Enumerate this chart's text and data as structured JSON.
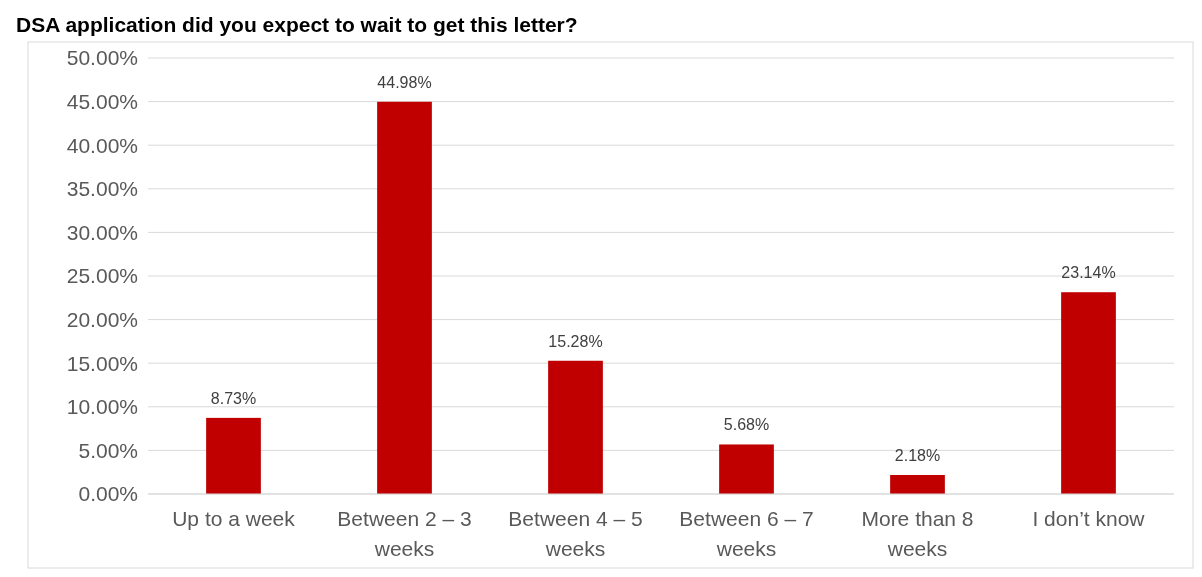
{
  "chart_data": {
    "type": "bar",
    "title": "DSA application did you expect to wait to get this letter?",
    "categories": [
      "Up to a week",
      "Between 2 – 3 weeks",
      "Between 4 – 5 weeks",
      "Between 6 – 7 weeks",
      "More than 8 weeks",
      "I don’t know"
    ],
    "values": [
      8.73,
      44.98,
      15.28,
      5.68,
      2.18,
      23.14
    ],
    "value_labels": [
      "8.73%",
      "44.98%",
      "15.28%",
      "5.68%",
      "2.18%",
      "23.14%"
    ],
    "color": "#c00000",
    "ylim": [
      0,
      50
    ],
    "yticks": [
      {
        "value": 0,
        "label": "0.00%"
      },
      {
        "value": 5,
        "label": "5.00%"
      },
      {
        "value": 10,
        "label": "10.00%"
      },
      {
        "value": 15,
        "label": "15.00%"
      },
      {
        "value": 20,
        "label": "20.00%"
      },
      {
        "value": 25,
        "label": "25.00%"
      },
      {
        "value": 30,
        "label": "30.00%"
      },
      {
        "value": 35,
        "label": "35.00%"
      },
      {
        "value": 40,
        "label": "40.00%"
      },
      {
        "value": 45,
        "label": "45.00%"
      },
      {
        "value": 50,
        "label": "50.00%"
      }
    ],
    "grid": "y"
  }
}
